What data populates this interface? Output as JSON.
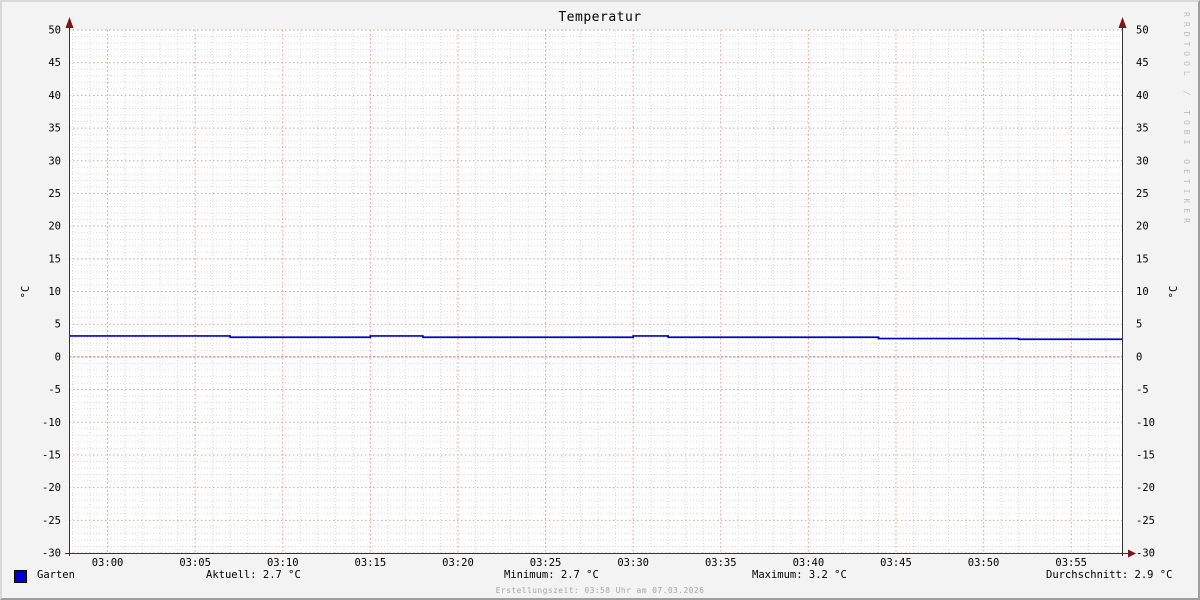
{
  "title": "Temperatur",
  "watermark": "RRDTOOL / TOBI OETIKER",
  "ylabel_left": "°C",
  "ylabel_right": "°C",
  "legend": {
    "series_label": "Garten",
    "series_color": "#0000cc",
    "aktuell": "Aktuell: 2.7 °C",
    "minimum": "Minimum: 2.7 °C",
    "maximum": "Maximum: 3.2 °C",
    "durchschnitt": "Durchschnitt: 2.9 °C"
  },
  "footer": "Erstellungszeit: 03:58 Uhr am 07.03.2026",
  "colors": {
    "background": "#f3f3f3",
    "canvas": "#ffffff",
    "minor_grid": "#d9d9d9",
    "major_grid": "#e59a9a",
    "zero_line": "#cc6666",
    "axis": "#333333",
    "arrow": "#7d1616",
    "line": "#0000cc",
    "text": "#000000",
    "footer_text": "#a6a6a6",
    "watermark_text": "#bdbdbd"
  },
  "chart_data": {
    "type": "line",
    "title": "Temperatur",
    "xlabel": "",
    "ylabel": "°C",
    "ylim": [
      -30,
      50
    ],
    "ytick_step": 5,
    "yticks": [
      50,
      45,
      40,
      35,
      30,
      25,
      20,
      15,
      10,
      5,
      0,
      -5,
      -10,
      -15,
      -20,
      -25,
      -30
    ],
    "x_tick_labels": [
      "03:00",
      "03:05",
      "03:10",
      "03:15",
      "03:20",
      "03:25",
      "03:30",
      "03:35",
      "03:40",
      "03:45",
      "03:50",
      "03:55"
    ],
    "x_minor_step_minutes": 1,
    "x_start_minute": -2.2,
    "x_end_minute": 57.9,
    "grid": true,
    "legend_position": "bottom",
    "series": [
      {
        "name": "Garten",
        "color": "#0000cc",
        "unit": "°C",
        "steps_minute_value": [
          [
            -2.2,
            3.2
          ],
          [
            7,
            3.0
          ],
          [
            15,
            3.2
          ],
          [
            18,
            3.0
          ],
          [
            30,
            3.2
          ],
          [
            32,
            3.0
          ],
          [
            44,
            2.8
          ],
          [
            52,
            2.7
          ]
        ],
        "stats": {
          "aktuell": 2.7,
          "minimum": 2.7,
          "maximum": 3.2,
          "durchschnitt": 2.9
        }
      }
    ]
  }
}
